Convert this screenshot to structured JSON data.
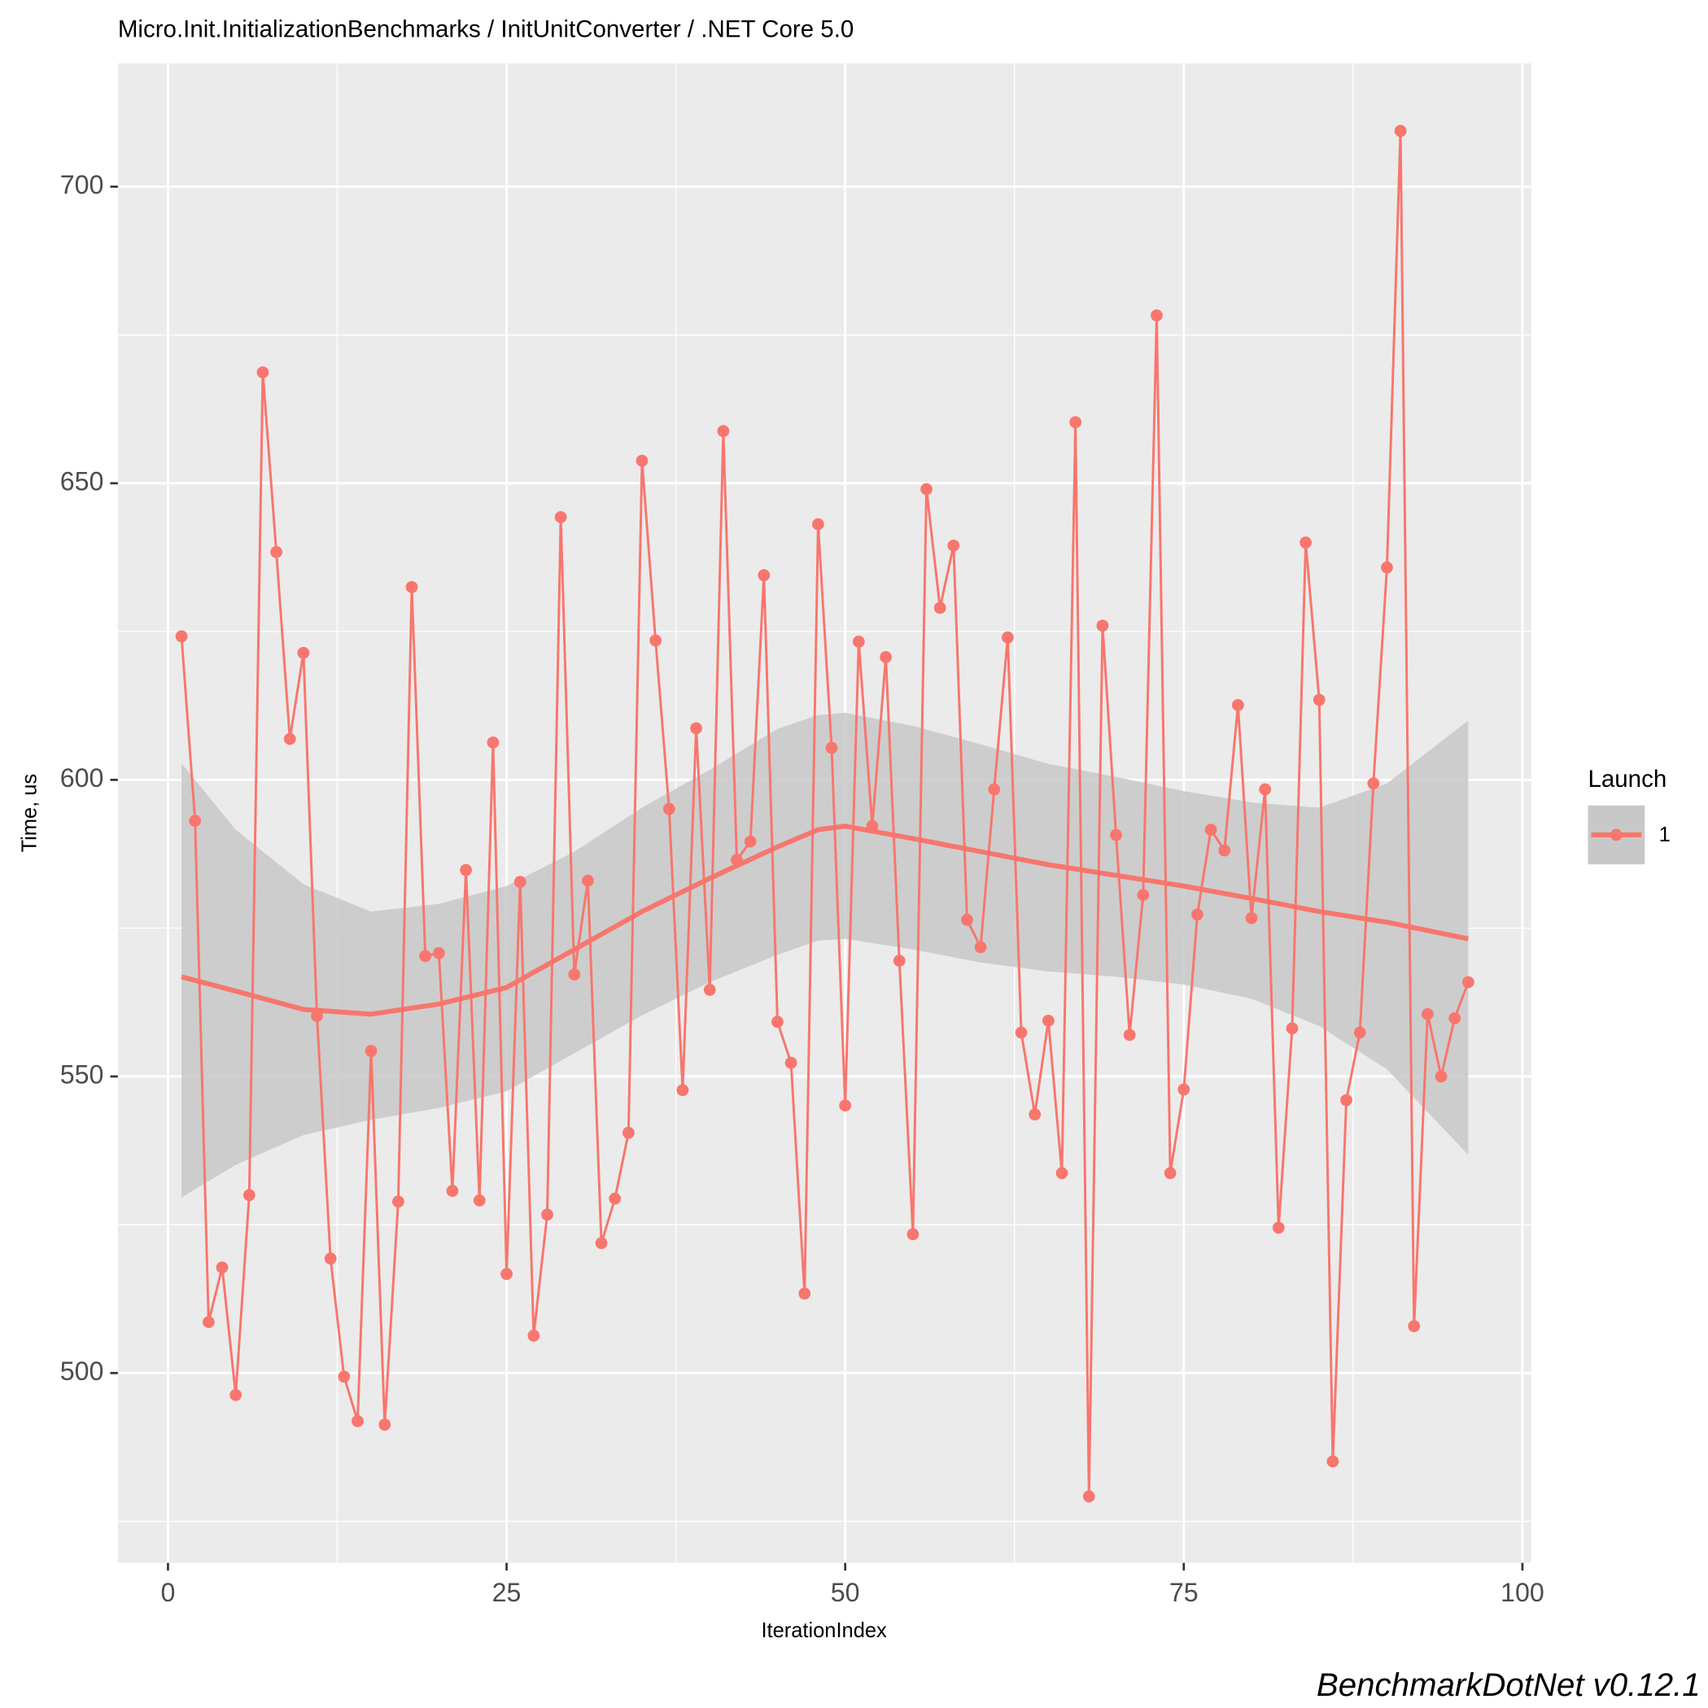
{
  "chart_data": {
    "type": "line",
    "title": "Micro.Init.InitializationBenchmarks / InitUnitConverter / .NET Core 5.0",
    "x_label": "IterationIndex",
    "y_label": "Time, us",
    "legend_title": "Launch",
    "caption": "BenchmarkDotNet v0.12.1",
    "x": [
      1,
      2,
      3,
      4,
      5,
      6,
      7,
      8,
      9,
      10,
      11,
      12,
      13,
      14,
      15,
      16,
      17,
      18,
      19,
      20,
      21,
      22,
      23,
      24,
      25,
      26,
      27,
      28,
      29,
      30,
      31,
      32,
      33,
      34,
      35,
      36,
      37,
      38,
      39,
      40,
      41,
      42,
      43,
      44,
      45,
      46,
      47,
      48,
      49,
      50,
      51,
      52,
      53,
      54,
      55,
      56,
      57,
      58,
      59,
      60,
      61,
      62,
      63,
      64,
      65,
      66,
      67,
      68,
      69,
      70,
      71,
      72,
      73,
      74,
      75,
      76,
      77,
      78,
      79,
      80,
      81,
      82,
      83,
      84,
      85,
      86,
      87,
      88,
      89,
      90,
      91,
      92,
      93,
      94,
      95,
      96
    ],
    "series": [
      {
        "name": "1",
        "color": "#F8766D",
        "values": [
          624.2,
          593.1,
          508.6,
          517.8,
          496.3,
          530.0,
          668.7,
          638.4,
          606.9,
          621.4,
          560.2,
          519.3,
          499.4,
          491.9,
          554.3,
          491.3,
          528.9,
          632.5,
          570.3,
          570.8,
          530.7,
          584.8,
          529.1,
          606.3,
          516.7,
          582.8,
          506.3,
          526.7,
          644.3,
          567.2,
          583.0,
          521.9,
          529.4,
          540.5,
          653.8,
          623.5,
          595.1,
          547.7,
          608.7,
          564.6,
          658.8,
          586.5,
          589.6,
          634.5,
          559.2,
          552.3,
          513.4,
          643.1,
          605.4,
          545.1,
          623.3,
          592.2,
          620.7,
          569.5,
          523.4,
          649.0,
          629.0,
          639.5,
          576.4,
          571.8,
          598.4,
          624.0,
          557.4,
          543.6,
          559.4,
          533.7,
          660.3,
          479.2,
          626.0,
          590.7,
          557.0,
          580.6,
          678.3,
          533.7,
          547.8,
          577.3,
          591.6,
          588.1,
          612.6,
          576.7,
          598.4,
          524.5,
          558.1,
          640.0,
          613.5,
          485.1,
          546.0,
          557.4,
          599.4,
          635.8,
          709.4,
          507.9,
          560.5,
          550.0,
          559.8,
          565.9
        ]
      }
    ],
    "smooth": {
      "color": "#F8766D",
      "band_color": "#C8C8C8",
      "x": [
        1,
        5,
        10,
        15,
        20,
        25,
        30,
        35,
        40,
        45,
        48,
        50,
        55,
        60,
        65,
        70,
        75,
        80,
        85,
        90,
        96
      ],
      "values": [
        566.8,
        564.4,
        561.3,
        560.5,
        562.2,
        565.0,
        571.4,
        577.8,
        583.4,
        588.7,
        591.6,
        592.2,
        590.1,
        587.9,
        585.7,
        583.9,
        582.1,
        580.0,
        577.8,
        576.0,
        573.2
      ],
      "lower": [
        529.6,
        535.1,
        540.1,
        542.7,
        544.7,
        547.5,
        553.9,
        560.3,
        565.9,
        570.5,
        572.9,
        573.2,
        571.4,
        569.2,
        567.7,
        566.8,
        565.5,
        563.1,
        558.5,
        551.2,
        536.8
      ],
      "upper": [
        602.8,
        591.6,
        582.4,
        577.8,
        579.1,
        582.1,
        587.9,
        595.3,
        601.7,
        608.6,
        610.9,
        611.3,
        609.1,
        606.0,
        602.7,
        600.5,
        598.1,
        596.2,
        595.3,
        599.4,
        610.0
      ]
    },
    "xlim": [
      -3.7,
      100.65
    ],
    "ylim": [
      468,
      720.8
    ],
    "xticks": [
      0,
      25,
      50,
      75,
      100
    ],
    "yticks": [
      500,
      550,
      600,
      650,
      700
    ],
    "x_minor_ticks": [
      12.5,
      37.5,
      62.5,
      87.5
    ],
    "y_minor_ticks": [
      475,
      525,
      575,
      625,
      675
    ],
    "grid": true
  }
}
